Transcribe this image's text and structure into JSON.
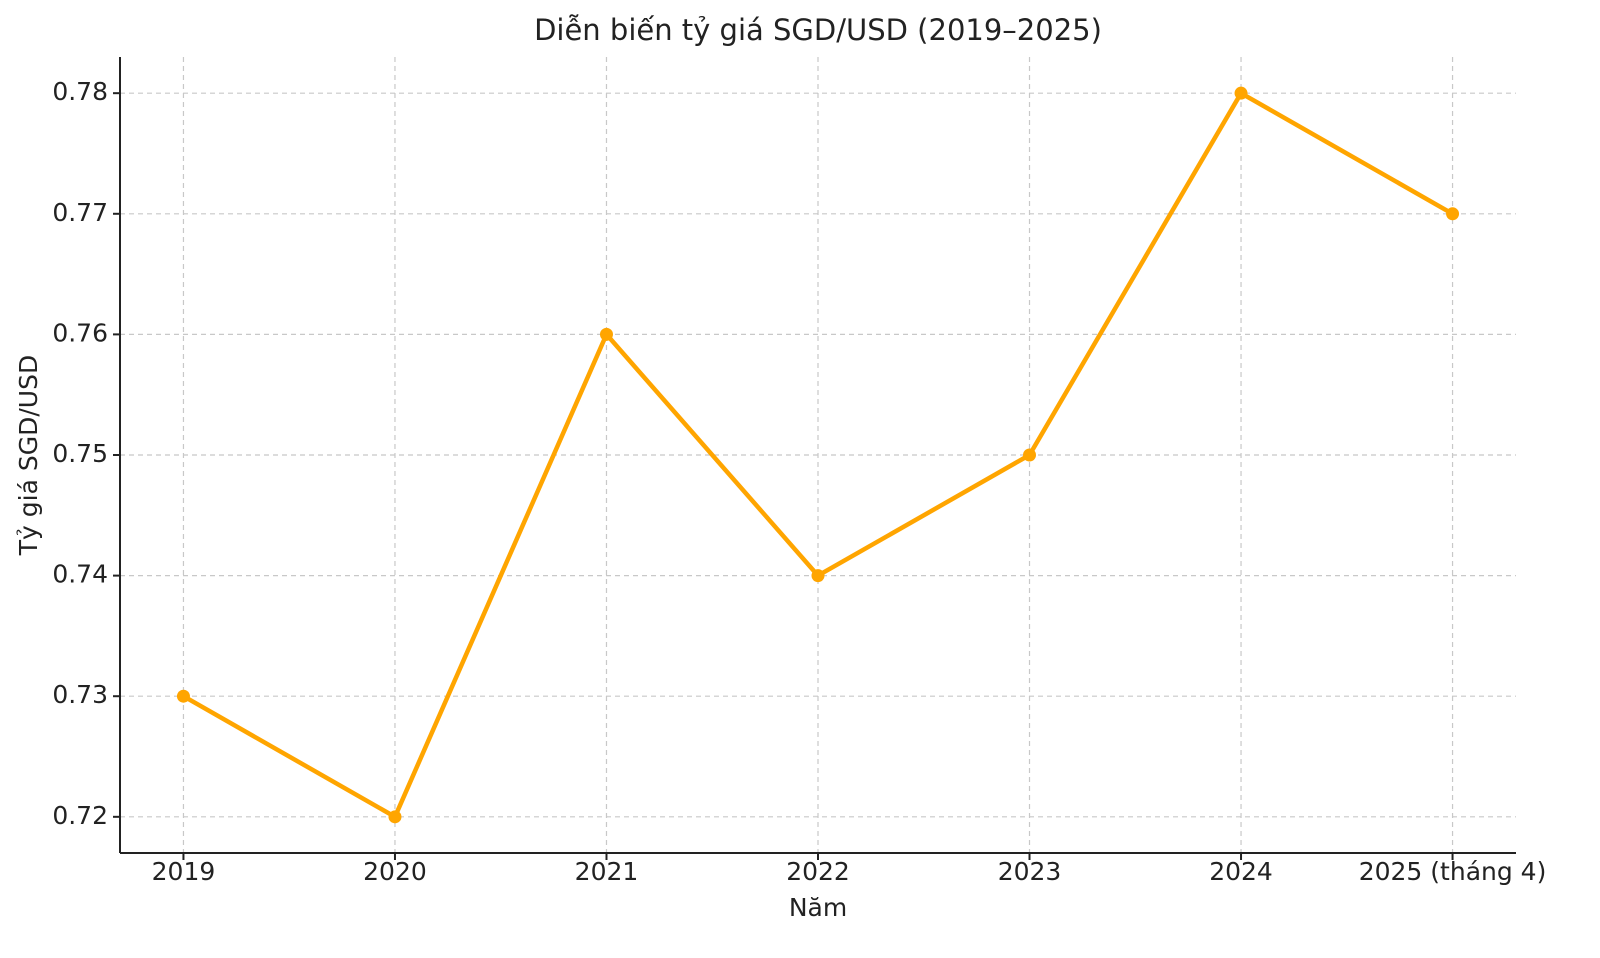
{
  "chart_data": {
    "type": "line",
    "title": "Diễn biến tỷ giá SGD/USD (2019–2025)",
    "x_label": "Năm",
    "y_label": "Tỷ giá SGD/USD",
    "categories": [
      "2019",
      "2020",
      "2021",
      "2022",
      "2023",
      "2024",
      "2025 (tháng 4)"
    ],
    "series": [
      {
        "name": "SGD/USD",
        "color": "#ffa500",
        "values": [
          0.73,
          0.72,
          0.76,
          0.74,
          0.75,
          0.78,
          0.77
        ]
      }
    ],
    "ylim": [
      0.717,
      0.783
    ],
    "yticks": [
      0.72,
      0.73,
      0.74,
      0.75,
      0.76,
      0.77,
      0.78
    ],
    "grid": true
  }
}
